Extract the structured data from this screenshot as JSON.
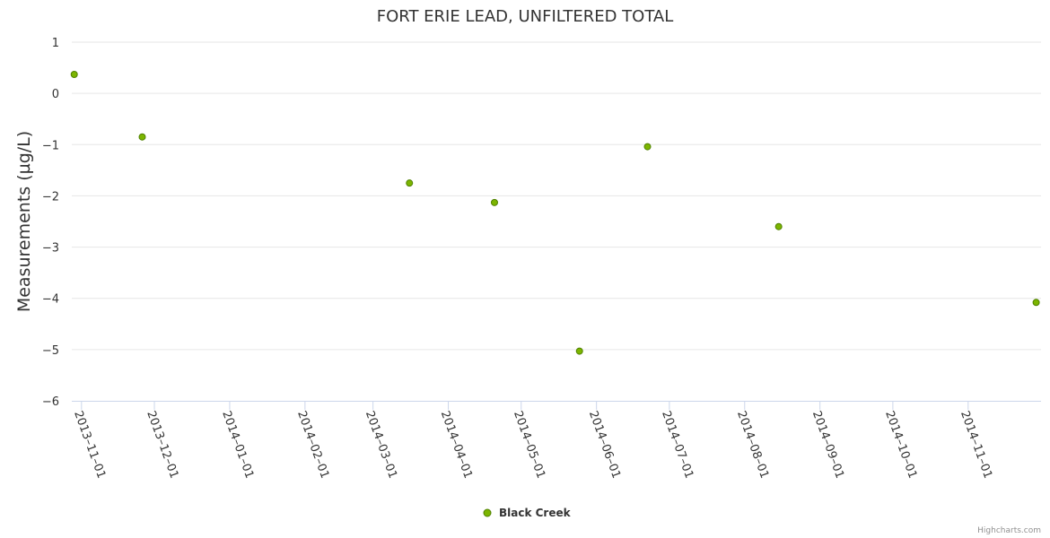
{
  "chart_data": {
    "type": "scatter",
    "title": "FORT ERIE LEAD, UNFILTERED TOTAL",
    "xlabel": "",
    "ylabel": "Measurements (µg/L)",
    "ylim": [
      -6,
      1
    ],
    "yticks": [
      1,
      0,
      -1,
      -2,
      -3,
      -4,
      -5,
      -6
    ],
    "xlim": [
      "2013-10-28",
      "2014-12-01"
    ],
    "xticks": [
      "2013-11-01",
      "2013-12-01",
      "2014-01-01",
      "2014-02-01",
      "2014-03-01",
      "2014-04-01",
      "2014-05-01",
      "2014-06-01",
      "2014-07-01",
      "2014-08-01",
      "2014-09-01",
      "2014-10-01",
      "2014-11-01"
    ],
    "grid": true,
    "legend_position": "bottom-center",
    "series": [
      {
        "name": "Black Creek",
        "color": "#7cb500",
        "points": [
          {
            "x": "2013-10-29",
            "y": 0.37
          },
          {
            "x": "2013-11-26",
            "y": -0.85
          },
          {
            "x": "2014-03-16",
            "y": -1.75
          },
          {
            "x": "2014-04-20",
            "y": -2.13
          },
          {
            "x": "2014-05-25",
            "y": -5.03
          },
          {
            "x": "2014-06-22",
            "y": -1.04
          },
          {
            "x": "2014-08-15",
            "y": -2.6
          },
          {
            "x": "2014-11-29",
            "y": -4.08
          }
        ]
      }
    ]
  },
  "credits": "Highcharts.com"
}
